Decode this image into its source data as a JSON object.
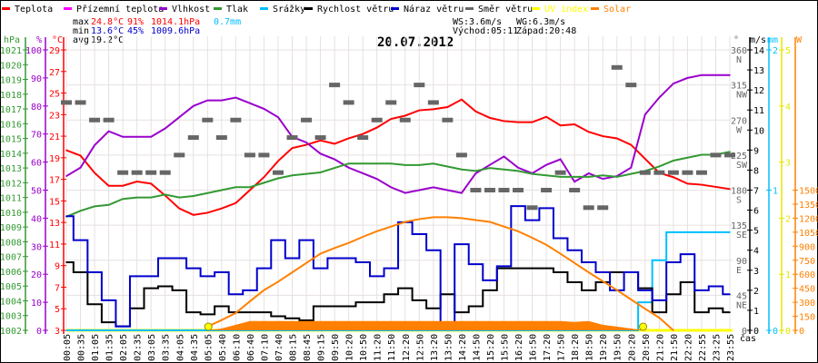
{
  "legend": [
    {
      "label": "Teplota",
      "color": "#ff0000"
    },
    {
      "label": "Přízemní teplota",
      "color": "#ff00ff"
    },
    {
      "label": "Vlhkost",
      "color": "#9900cc"
    },
    {
      "label": "Tlak",
      "color": "#339933"
    },
    {
      "label": "Srážky",
      "color": "#00bfff"
    },
    {
      "label": "Rychlost větru",
      "color": "#000000"
    },
    {
      "label": "Náraz větru",
      "color": "#0000cc"
    },
    {
      "label": "Směr větru",
      "color": "#666666"
    },
    {
      "label": "UV index",
      "color": "#ffff00"
    },
    {
      "label": "Solar",
      "color": "#ff8000"
    }
  ],
  "stats": {
    "max_label": "max",
    "max_temp": "24.8°C",
    "max_hum": "91%",
    "max_press": "1014.1hPa",
    "rain": "0.7mm",
    "min_label": "min",
    "min_temp": "13.6°C",
    "min_hum": "45%",
    "min_press": "1009.6hPa",
    "avg_label": "avg",
    "avg_temp": "19.2°C"
  },
  "info": {
    "ws": "WS:3.6m/s",
    "wg": "WG:6.3m/s",
    "sunrise": "Východ:05:11",
    "sunset": "Západ:20:48"
  },
  "chart_data": {
    "type": "line",
    "title": "20.07.2012",
    "xlabel": "čas",
    "x": [
      "00:05",
      "00:35",
      "01:05",
      "01:35",
      "02:05",
      "02:35",
      "03:05",
      "03:35",
      "04:05",
      "04:35",
      "05:05",
      "05:40",
      "06:10",
      "06:40",
      "07:10",
      "07:40",
      "08:15",
      "08:45",
      "09:15",
      "09:50",
      "10:20",
      "10:50",
      "11:20",
      "11:50",
      "12:20",
      "12:50",
      "13:20",
      "13:50",
      "14:20",
      "14:50",
      "15:20",
      "15:50",
      "16:20",
      "16:50",
      "17:20",
      "17:50",
      "18:20",
      "18:50",
      "19:20",
      "19:50",
      "20:20",
      "20:50",
      "21:20",
      "21:50",
      "22:20",
      "22:55",
      "23:25",
      "23:55"
    ],
    "axes": {
      "pressure": {
        "unit": "hPa",
        "range": [
          1002,
          1021
        ],
        "ticks": [
          "1021",
          "1020",
          "1019",
          "1018",
          "1017",
          "1016",
          "1015",
          "1014",
          "1013",
          "1012",
          "1011",
          "1010",
          "1009",
          "1008",
          "1007",
          "1006",
          "1005",
          "1004",
          "1003",
          "1002"
        ]
      },
      "humidity": {
        "unit": "%",
        "range": [
          0,
          100
        ],
        "ticks": [
          "100",
          "90",
          "80",
          "70",
          "60",
          "50",
          "40",
          "30",
          "20",
          "10",
          "0"
        ]
      },
      "temperature": {
        "unit": "°C",
        "range": [
          3,
          29
        ],
        "ticks": [
          "29",
          "27",
          "25",
          "23",
          "21",
          "19",
          "17",
          "15",
          "13",
          "11",
          "9",
          "7",
          "5",
          "3"
        ]
      },
      "direction": {
        "unit": "°",
        "range": [
          0,
          360
        ],
        "ticks": [
          {
            "v": "360",
            "c": "N"
          },
          {
            "v": "315",
            "c": "NW"
          },
          {
            "v": "270",
            "c": "W"
          },
          {
            "v": "225",
            "c": "SW"
          },
          {
            "v": "180",
            "c": "S"
          },
          {
            "v": "135",
            "c": "SE"
          },
          {
            "v": "90",
            "c": "E"
          },
          {
            "v": "45",
            "c": "NE"
          },
          {
            "v": "0",
            "c": ""
          }
        ]
      },
      "wind": {
        "unit": "m/s",
        "range": [
          0,
          14
        ],
        "ticks": [
          "14",
          "13",
          "12",
          "11",
          "10",
          "9",
          "8",
          "7",
          "6",
          "5",
          "4",
          "3",
          "2",
          "1",
          "0"
        ]
      },
      "rain": {
        "unit": "mm",
        "range": [
          0,
          2
        ],
        "ticks": [
          "2",
          "1",
          "0"
        ]
      },
      "uv": {
        "unit": "",
        "range": [
          0,
          5
        ],
        "ticks": [
          "5",
          "4",
          "3",
          "2",
          "1",
          "0"
        ]
      },
      "solar": {
        "unit": "W",
        "range": [
          0,
          3000
        ],
        "ticks": [
          "1500",
          "1350",
          "1200",
          "1050",
          "900",
          "750",
          "600",
          "450",
          "300",
          "150",
          "0"
        ]
      }
    },
    "series": [
      {
        "name": "Teplota",
        "axis": "temperature",
        "color": "#ff0000",
        "values": [
          19.7,
          19.2,
          17.6,
          16.4,
          16.4,
          16.8,
          16.6,
          15.5,
          14.3,
          13.7,
          13.9,
          14.3,
          14.8,
          16.0,
          17.2,
          18.7,
          19.9,
          20.2,
          20.6,
          20.3,
          20.8,
          21.2,
          21.8,
          22.6,
          22.9,
          23.4,
          23.5,
          23.7,
          24.4,
          23.3,
          22.7,
          22.4,
          22.3,
          22.3,
          22.8,
          22.0,
          22.1,
          21.4,
          21.0,
          20.8,
          20.2,
          18.9,
          17.6,
          17.2,
          16.6,
          16.5,
          16.3,
          16.1
        ]
      },
      {
        "name": "Vlhkost",
        "axis": "humidity",
        "color": "#9900cc",
        "values": [
          55,
          58,
          66,
          71,
          69,
          69,
          69,
          72,
          76,
          80,
          82,
          82,
          83,
          81,
          79,
          76,
          69,
          67,
          63,
          61,
          58,
          56,
          54,
          51,
          49,
          50,
          51,
          50,
          49,
          56,
          59,
          62,
          58,
          56,
          59,
          61,
          53,
          56,
          54,
          55,
          58,
          77,
          83,
          88,
          90,
          91,
          91,
          91
        ]
      },
      {
        "name": "Tlak",
        "axis": "pressure",
        "color": "#339933",
        "values": [
          1009.7,
          1010.1,
          1010.4,
          1010.5,
          1010.9,
          1011.0,
          1011.0,
          1011.2,
          1011.0,
          1011.1,
          1011.3,
          1011.5,
          1011.7,
          1011.7,
          1012.0,
          1012.3,
          1012.5,
          1012.6,
          1012.7,
          1013.0,
          1013.3,
          1013.3,
          1013.3,
          1013.3,
          1013.2,
          1013.2,
          1013.3,
          1013.1,
          1012.9,
          1012.8,
          1013.0,
          1012.9,
          1012.8,
          1012.6,
          1012.5,
          1012.4,
          1012.4,
          1012.4,
          1012.5,
          1012.4,
          1012.6,
          1012.8,
          1013.1,
          1013.5,
          1013.7,
          1013.9,
          1013.9,
          1014.1
        ]
      },
      {
        "name": "Srážky",
        "axis": "rain",
        "color": "#00bfff",
        "step": true,
        "values": [
          0,
          0,
          0,
          0,
          0,
          0,
          0,
          0,
          0,
          0,
          0,
          0,
          0,
          0,
          0,
          0,
          0,
          0,
          0,
          0,
          0,
          0,
          0,
          0,
          0,
          0,
          0,
          0,
          0,
          0,
          0,
          0,
          0,
          0,
          0,
          0,
          0,
          0,
          0,
          0,
          0,
          0.2,
          0.5,
          0.7,
          0.7,
          0.7,
          0.7,
          0.7
        ]
      },
      {
        "name": "Rychlost větru",
        "axis": "wind",
        "color": "#000000",
        "step": true,
        "values": [
          3.4,
          2.9,
          1.3,
          0.4,
          0.2,
          1.1,
          2.1,
          2.2,
          2.0,
          0.9,
          0.8,
          1.2,
          0.9,
          0.9,
          0.9,
          0.7,
          0.6,
          0.5,
          1.2,
          1.2,
          1.2,
          1.4,
          1.4,
          1.8,
          2.1,
          1.5,
          1.1,
          1.8,
          0.9,
          1.2,
          2.0,
          3.1,
          3.1,
          3.1,
          3.1,
          2.9,
          2.4,
          2.0,
          2.4,
          2.9,
          2.9,
          2.1,
          0.9,
          1.8,
          2.4,
          0.9,
          1.1,
          0.9
        ]
      },
      {
        "name": "Náraz větru",
        "axis": "wind",
        "color": "#0000cc",
        "step": true,
        "values": [
          5.7,
          4.5,
          2.9,
          1.5,
          0.2,
          2.7,
          2.7,
          3.6,
          3.6,
          3.1,
          2.7,
          2.9,
          1.8,
          2.0,
          3.1,
          4.5,
          3.6,
          4.5,
          3.1,
          3.6,
          3.6,
          3.4,
          2.7,
          3.1,
          5.4,
          4.8,
          4.0,
          0.3,
          4.3,
          3.3,
          2.5,
          3.2,
          6.2,
          5.5,
          6.1,
          4.6,
          4.0,
          3.4,
          2.9,
          2.0,
          2.9,
          2.0,
          1.5,
          3.4,
          3.8,
          2.0,
          2.2,
          1.8
        ]
      },
      {
        "name": "Směr větru",
        "axis": "direction",
        "color": "#666666",
        "type": "segments",
        "values": [
          292.5,
          292.5,
          270,
          270,
          202.5,
          202.5,
          202.5,
          202.5,
          225,
          247.5,
          270,
          247.5,
          270,
          225,
          225,
          202.5,
          247.5,
          270,
          247.5,
          315,
          292.5,
          247.5,
          270,
          292.5,
          270,
          315,
          292.5,
          270,
          225,
          180,
          180,
          180,
          180,
          157.5,
          180,
          202.5,
          180,
          157.5,
          157.5,
          337.5,
          315,
          202.5,
          202.5,
          202.5,
          202.5,
          202.5,
          225,
          225
        ]
      },
      {
        "name": "UV index",
        "axis": "uv",
        "color": "#ffff00",
        "values": [
          0,
          0,
          0,
          0,
          0,
          0,
          0,
          0,
          0,
          0,
          0,
          0,
          0,
          0,
          0,
          0,
          0,
          0,
          0,
          0,
          0,
          0,
          0,
          0,
          0,
          0,
          0,
          0,
          0,
          0,
          0,
          0,
          0,
          0,
          0,
          0,
          0,
          0,
          0,
          0,
          0,
          0,
          0,
          0,
          0,
          0,
          0,
          0
        ]
      },
      {
        "name": "Solar",
        "axis": "solar",
        "color": "#ff8000",
        "values": [
          null,
          null,
          null,
          null,
          null,
          null,
          null,
          null,
          null,
          null,
          40,
          110,
          185,
          310,
          430,
          520,
          620,
          720,
          820,
          880,
          935,
          1000,
          1060,
          1110,
          1160,
          1190,
          1210,
          1210,
          1200,
          1180,
          1160,
          1110,
          1060,
          990,
          915,
          820,
          720,
          620,
          525,
          430,
          330,
          230,
          135,
          0,
          null,
          null,
          null,
          null
        ]
      },
      {
        "name": "Solar (fill)",
        "axis": "solar",
        "color": "#ff8000",
        "type": "area",
        "values": [
          0,
          0,
          0,
          0,
          0,
          0,
          0,
          0,
          0,
          0,
          0,
          20,
          60,
          100,
          100,
          100,
          100,
          100,
          100,
          100,
          100,
          100,
          100,
          100,
          100,
          100,
          100,
          100,
          100,
          100,
          100,
          100,
          100,
          100,
          100,
          100,
          90,
          100,
          60,
          40,
          20,
          0,
          0,
          0,
          0,
          0,
          0,
          0
        ]
      }
    ],
    "markers": [
      {
        "name": "sunrise",
        "time": "05:11"
      },
      {
        "name": "sunset",
        "time": "20:48"
      }
    ]
  }
}
